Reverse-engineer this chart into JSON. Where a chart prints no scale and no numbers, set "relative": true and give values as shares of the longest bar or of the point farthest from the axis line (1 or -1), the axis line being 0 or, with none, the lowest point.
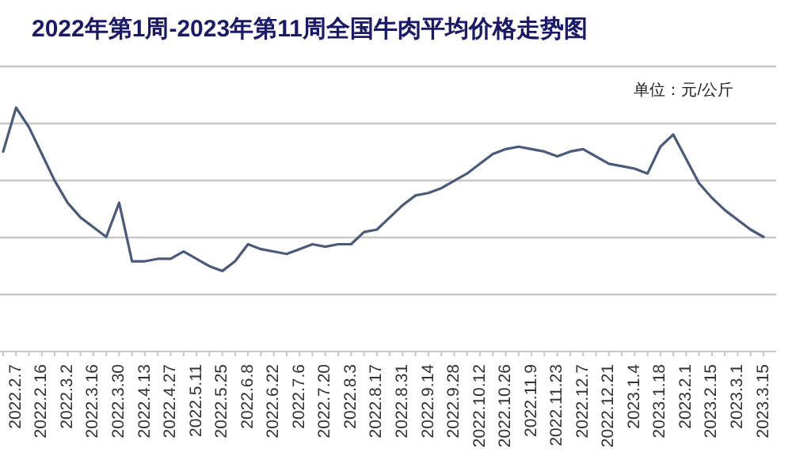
{
  "chart_data": {
    "type": "line",
    "title": "2022年第1周-2023年第11周全国牛肉平均价格走势图",
    "annotations": [
      "单位：元/公斤"
    ],
    "relative": true,
    "grid": "y",
    "categories": [
      null,
      "2022.2.7",
      null,
      "2022.2.16",
      null,
      "2022.3.2",
      null,
      "2022.3.16",
      null,
      "2022.3.30",
      null,
      "2022.4.13",
      null,
      "2022.4.27",
      null,
      "2022.5.11",
      null,
      "2022.5.25",
      null,
      "2022.6.8",
      null,
      "2022.6.22",
      null,
      "2022.7.6",
      null,
      "2022.7.20",
      null,
      "2022.8.3",
      null,
      "2022.8.17",
      null,
      "2022.8.31",
      null,
      "2022.9.14",
      null,
      "2022.9.28",
      null,
      "2022.10.12",
      null,
      "2022.10.26",
      null,
      "2022.11.9",
      null,
      "2022.11.23",
      null,
      "2022.12.7",
      null,
      "2022.12.21",
      null,
      "2023.1.4",
      null,
      "2023.1.18",
      null,
      "2023.2.1",
      null,
      "2023.2.15",
      null,
      "2023.3.1",
      null,
      "2023.3.15"
    ],
    "series": [
      {
        "color": "#4a5a78",
        "values": [
          0.82,
          1,
          0.92,
          0.81,
          0.7,
          0.61,
          0.55,
          0.51,
          0.47,
          0.61,
          0.37,
          0.37,
          0.38,
          0.38,
          0.41,
          0.38,
          0.35,
          0.33,
          0.37,
          0.44,
          0.42,
          0.41,
          0.4,
          0.42,
          0.44,
          0.43,
          0.44,
          0.44,
          0.49,
          0.5,
          0.55,
          0.6,
          0.64,
          0.65,
          0.67,
          0.7,
          0.73,
          0.77,
          0.81,
          0.83,
          0.84,
          0.83,
          0.82,
          0.8,
          0.82,
          0.83,
          0.8,
          0.77,
          0.76,
          0.75,
          0.73,
          0.84,
          0.89,
          0.79,
          0.69,
          0.63,
          0.58,
          0.54,
          0.5,
          0.47
        ]
      }
    ]
  }
}
